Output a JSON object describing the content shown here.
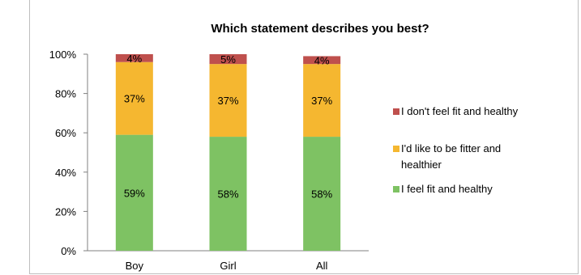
{
  "chart_data": {
    "type": "bar",
    "stacked": true,
    "percent": true,
    "title": "Which statement describes you best?",
    "xlabel": "",
    "ylabel": "",
    "categories": [
      "Boy",
      "Girl",
      "All"
    ],
    "ylim": [
      0,
      100
    ],
    "yticks": [
      0,
      20,
      40,
      60,
      80,
      100
    ],
    "ytick_labels": [
      "0%",
      "20%",
      "40%",
      "60%",
      "80%",
      "100%"
    ],
    "grid": false,
    "legend_position": "right",
    "series": [
      {
        "name": "I feel fit and healthy",
        "values": [
          59,
          58,
          58
        ],
        "labels": [
          "59%",
          "58%",
          "58%"
        ],
        "color": "#7ec263"
      },
      {
        "name": "I'd like to be fitter and healthier",
        "values": [
          37,
          37,
          37
        ],
        "labels": [
          "37%",
          "37%",
          "37%"
        ],
        "color": "#f5b730"
      },
      {
        "name": "I don't feel fit and healthy",
        "values": [
          4,
          5,
          4
        ],
        "labels": [
          "4%",
          "5%",
          "4%"
        ],
        "color": "#bf504d"
      }
    ],
    "legend_order": [
      2,
      1,
      0
    ]
  }
}
